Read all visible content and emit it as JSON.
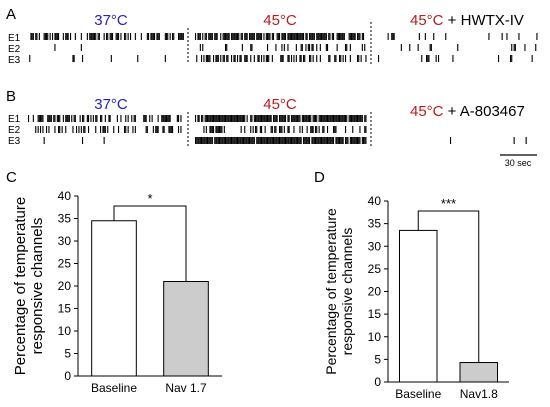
{
  "panels": {
    "A": {
      "letter": "A",
      "channels": [
        "E1",
        "E2",
        "E3"
      ],
      "segments": [
        {
          "label": "37°C",
          "color": "#2323b8"
        },
        {
          "label": "45°C",
          "color": "#b81c1c"
        },
        {
          "label": "45°C",
          "color": "#b81c1c",
          "suffix": " + HWTX-IV"
        }
      ]
    },
    "B": {
      "letter": "B",
      "channels": [
        "E1",
        "E2",
        "E3"
      ],
      "segments": [
        {
          "label": "37°C",
          "color": "#2323b8"
        },
        {
          "label": "45°C",
          "color": "#b81c1c"
        },
        {
          "label": "45°C",
          "color": "#b81c1c",
          "suffix": " + A-803467"
        }
      ]
    },
    "scalebar": "30 sec",
    "C": {
      "letter": "C"
    },
    "D": {
      "letter": "D"
    }
  },
  "chart_data": [
    {
      "type": "bar",
      "panel": "C",
      "categories": [
        "Baseline",
        "Nav 1.7"
      ],
      "values": [
        34.5,
        21
      ],
      "colors": [
        "#ffffff",
        "#cccccc"
      ],
      "ylabel": "Percentage of temperature responsive channels",
      "ylim": [
        0,
        40
      ],
      "yticks": [
        0,
        5,
        10,
        15,
        20,
        25,
        30,
        35,
        40
      ],
      "significance": "*"
    },
    {
      "type": "bar",
      "panel": "D",
      "categories": [
        "Baseline",
        "Nav1.8"
      ],
      "values": [
        33.5,
        4.3
      ],
      "colors": [
        "#ffffff",
        "#cccccc"
      ],
      "ylabel": "Percentage of temperature responsive channels",
      "ylim": [
        0,
        40
      ],
      "yticks": [
        0,
        5,
        10,
        15,
        20,
        25,
        30,
        35,
        40
      ],
      "significance": "***"
    }
  ]
}
